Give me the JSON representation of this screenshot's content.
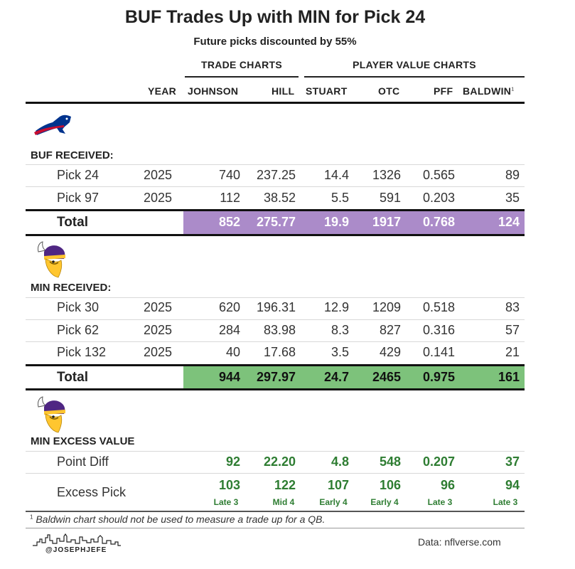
{
  "title": "BUF Trades Up with MIN for Pick 24",
  "subtitle": "Future picks discounted by 55%",
  "groups": {
    "trade": "TRADE CHARTS",
    "player": "PLAYER VALUE CHARTS"
  },
  "columns": {
    "year": "YEAR",
    "johnson": "JOHNSON",
    "hill": "HILL",
    "stuart": "STUART",
    "otc": "OTC",
    "pff": "PFF",
    "baldwin": "BALDWIN",
    "baldwin_note": "1"
  },
  "buf": {
    "label": "BUF RECEIVED:",
    "logo_icon": "bills-logo-icon",
    "rows": [
      {
        "name": "Pick 24",
        "year": "2025",
        "johnson": "740",
        "hill": "237.25",
        "stuart": "14.4",
        "otc": "1326",
        "pff": "0.565",
        "baldwin": "89"
      },
      {
        "name": "Pick 97",
        "year": "2025",
        "johnson": "112",
        "hill": "38.52",
        "stuart": "5.5",
        "otc": "591",
        "pff": "0.203",
        "baldwin": "35"
      }
    ],
    "total": {
      "name": "Total",
      "johnson": "852",
      "hill": "275.77",
      "stuart": "19.9",
      "otc": "1917",
      "pff": "0.768",
      "baldwin": "124"
    },
    "total_color": "#ab8bc9"
  },
  "min": {
    "label": "MIN RECEIVED:",
    "logo_icon": "vikings-logo-icon",
    "rows": [
      {
        "name": "Pick 30",
        "year": "2025",
        "johnson": "620",
        "hill": "196.31",
        "stuart": "12.9",
        "otc": "1209",
        "pff": "0.518",
        "baldwin": "83"
      },
      {
        "name": "Pick 62",
        "year": "2025",
        "johnson": "284",
        "hill": "83.98",
        "stuart": "8.3",
        "otc": "827",
        "pff": "0.316",
        "baldwin": "57"
      },
      {
        "name": "Pick 132",
        "year": "2025",
        "johnson": "40",
        "hill": "17.68",
        "stuart": "3.5",
        "otc": "429",
        "pff": "0.141",
        "baldwin": "21"
      }
    ],
    "total": {
      "name": "Total",
      "johnson": "944",
      "hill": "297.97",
      "stuart": "24.7",
      "otc": "2465",
      "pff": "0.975",
      "baldwin": "161"
    },
    "total_color": "#7dc27b"
  },
  "excess": {
    "label": "MIN EXCESS VALUE",
    "logo_icon": "vikings-logo-icon",
    "point_diff": {
      "name": "Point Diff",
      "johnson": "92",
      "hill": "22.20",
      "stuart": "4.8",
      "otc": "548",
      "pff": "0.207",
      "baldwin": "37"
    },
    "excess_pick": {
      "name": "Excess Pick",
      "johnson": "103",
      "hill": "122",
      "stuart": "107",
      "otc": "106",
      "pff": "96",
      "baldwin": "94",
      "johnson_round": "Late 3",
      "hill_round": "Mid 4",
      "stuart_round": "Early 4",
      "otc_round": "Early 4",
      "pff_round": "Late 3",
      "baldwin_round": "Late 3"
    },
    "value_color": "#2e7d32"
  },
  "footnote": {
    "mark": "1",
    "text": "Baldwin chart should not be used to measure a trade up for a QB."
  },
  "credit": "@JOSEPHJEFE",
  "source": "Data: nflverse.com"
}
